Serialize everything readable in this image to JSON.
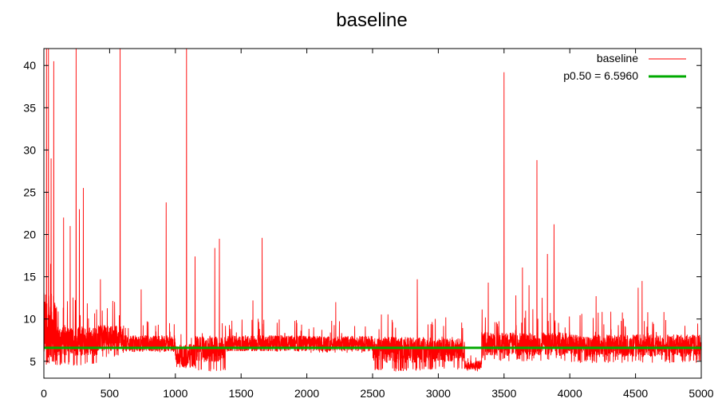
{
  "chart_data": {
    "type": "line",
    "title": "baseline",
    "xlabel": "",
    "ylabel": "",
    "xlim": [
      0,
      5000
    ],
    "ylim": [
      3,
      42
    ],
    "x_ticks": [
      0,
      500,
      1000,
      1500,
      2000,
      2500,
      3000,
      3500,
      4000,
      4500,
      5000
    ],
    "y_ticks": [
      5,
      10,
      15,
      20,
      25,
      30,
      35,
      40
    ],
    "grid": false,
    "legend_position": "top-right",
    "colors": {
      "baseline": "#ff0000",
      "median": "#00aa00"
    },
    "series": [
      {
        "name": "baseline",
        "style": "noisy-line",
        "n_points": 5000,
        "segments": [
          {
            "x0": 0,
            "x1": 100,
            "base": 8.5,
            "noise": 6.0,
            "floor": 4.5
          },
          {
            "x0": 100,
            "x1": 400,
            "base": 7.2,
            "noise": 2.5,
            "floor": 4.5
          },
          {
            "x0": 400,
            "x1": 600,
            "base": 7.6,
            "noise": 2.2,
            "floor": 5.5
          },
          {
            "x0": 600,
            "x1": 1000,
            "base": 7.0,
            "noise": 1.4,
            "floor": 6.0
          },
          {
            "x0": 1000,
            "x1": 1150,
            "base": 5.5,
            "noise": 2.0,
            "floor": 4.0
          },
          {
            "x0": 1150,
            "x1": 1380,
            "base": 6.3,
            "noise": 2.2,
            "floor": 3.8
          },
          {
            "x0": 1380,
            "x1": 2000,
            "base": 7.0,
            "noise": 1.4,
            "floor": 6.2
          },
          {
            "x0": 2000,
            "x1": 2500,
            "base": 7.0,
            "noise": 1.3,
            "floor": 6.0
          },
          {
            "x0": 2500,
            "x1": 2900,
            "base": 6.2,
            "noise": 2.2,
            "floor": 3.8
          },
          {
            "x0": 2900,
            "x1": 3200,
            "base": 6.2,
            "noise": 2.0,
            "floor": 4.0
          },
          {
            "x0": 3200,
            "x1": 3330,
            "base": 4.5,
            "noise": 0.8,
            "floor": 3.8
          },
          {
            "x0": 3330,
            "x1": 4000,
            "base": 6.9,
            "noise": 2.0,
            "floor": 5.0
          },
          {
            "x0": 4000,
            "x1": 5000,
            "base": 6.7,
            "noise": 1.9,
            "floor": 4.8
          }
        ],
        "spikes": [
          {
            "x": 20,
            "y": 42
          },
          {
            "x": 35,
            "y": 42
          },
          {
            "x": 55,
            "y": 29
          },
          {
            "x": 75,
            "y": 40.5
          },
          {
            "x": 150,
            "y": 22
          },
          {
            "x": 200,
            "y": 21
          },
          {
            "x": 245,
            "y": 42
          },
          {
            "x": 270,
            "y": 23
          },
          {
            "x": 300,
            "y": 25.5
          },
          {
            "x": 430,
            "y": 14.7
          },
          {
            "x": 580,
            "y": 42
          },
          {
            "x": 740,
            "y": 13.5
          },
          {
            "x": 930,
            "y": 23.8
          },
          {
            "x": 1085,
            "y": 42
          },
          {
            "x": 1150,
            "y": 17.4
          },
          {
            "x": 1300,
            "y": 18.4
          },
          {
            "x": 1335,
            "y": 19.5
          },
          {
            "x": 1590,
            "y": 12.2
          },
          {
            "x": 1660,
            "y": 19.6
          },
          {
            "x": 2220,
            "y": 12.0
          },
          {
            "x": 2840,
            "y": 14.7
          },
          {
            "x": 3380,
            "y": 14.3
          },
          {
            "x": 3500,
            "y": 39.2
          },
          {
            "x": 3590,
            "y": 12.8
          },
          {
            "x": 3640,
            "y": 16.1
          },
          {
            "x": 3690,
            "y": 14.0
          },
          {
            "x": 3750,
            "y": 28.8
          },
          {
            "x": 3790,
            "y": 12.5
          },
          {
            "x": 3830,
            "y": 17.7
          },
          {
            "x": 3880,
            "y": 21.2
          },
          {
            "x": 4200,
            "y": 12.7
          },
          {
            "x": 4520,
            "y": 13.7
          },
          {
            "x": 4550,
            "y": 14.5
          }
        ]
      },
      {
        "name": "p0.50 = 6.5960",
        "style": "horizontal-line",
        "y": 6.596
      }
    ]
  }
}
